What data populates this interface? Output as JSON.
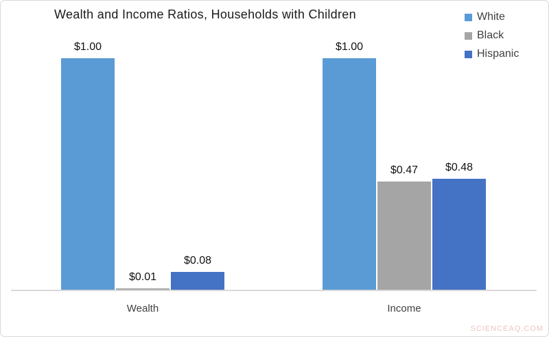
{
  "chart_data": {
    "type": "bar",
    "title": "Wealth and Income Ratios, Households with Children",
    "categories": [
      "Wealth",
      "Income"
    ],
    "series": [
      {
        "name": "White",
        "color": "#5B9BD5",
        "values": [
          1.0,
          1.0
        ],
        "value_labels": [
          "$1.00",
          "$1.00"
        ]
      },
      {
        "name": "Black",
        "color": "#A5A5A5",
        "values": [
          0.01,
          0.47
        ],
        "value_labels": [
          "$0.01",
          "$0.47"
        ]
      },
      {
        "name": "Hispanic",
        "color": "#4472C4",
        "values": [
          0.08,
          0.48
        ],
        "value_labels": [
          "$0.08",
          "$0.48"
        ]
      }
    ],
    "ylim": [
      0,
      1.0
    ],
    "grid": false,
    "y_axis_visible": false,
    "legend_position": "top-right",
    "axis_color": "#D9D9D9",
    "value_format": "$0.00"
  },
  "watermark": "SCIENCEAQ.COM"
}
